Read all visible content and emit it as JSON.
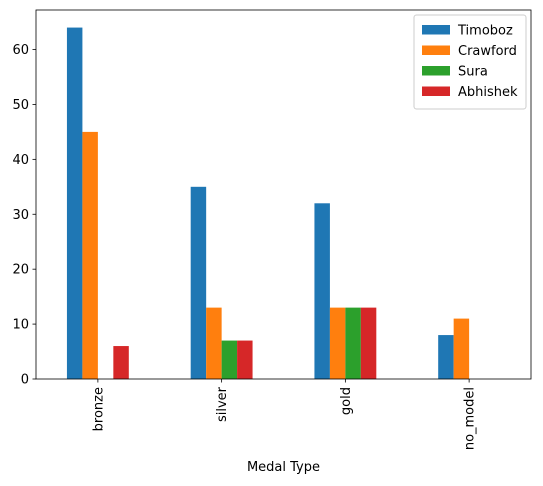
{
  "chart_data": {
    "type": "bar",
    "title": "",
    "xlabel": "Medal Type",
    "ylabel": "",
    "categories": [
      "bronze",
      "silver",
      "gold",
      "no_model"
    ],
    "series": [
      {
        "name": "Timoboz",
        "values": [
          64,
          35,
          32,
          8
        ],
        "color": "#1f77b4"
      },
      {
        "name": "Crawford",
        "values": [
          45,
          13,
          13,
          11
        ],
        "color": "#ff7f0e"
      },
      {
        "name": "Sura",
        "values": [
          0,
          7,
          13,
          0
        ],
        "color": "#2ca02c"
      },
      {
        "name": "Abhishek",
        "values": [
          6,
          7,
          13,
          0
        ],
        "color": "#d62728"
      }
    ],
    "ylim": [
      0,
      67.2
    ],
    "yticks": [
      0,
      10,
      20,
      30,
      40,
      50,
      60
    ],
    "grid": false,
    "legend_position": "top-right",
    "x_tick_rotation": "vertical"
  }
}
